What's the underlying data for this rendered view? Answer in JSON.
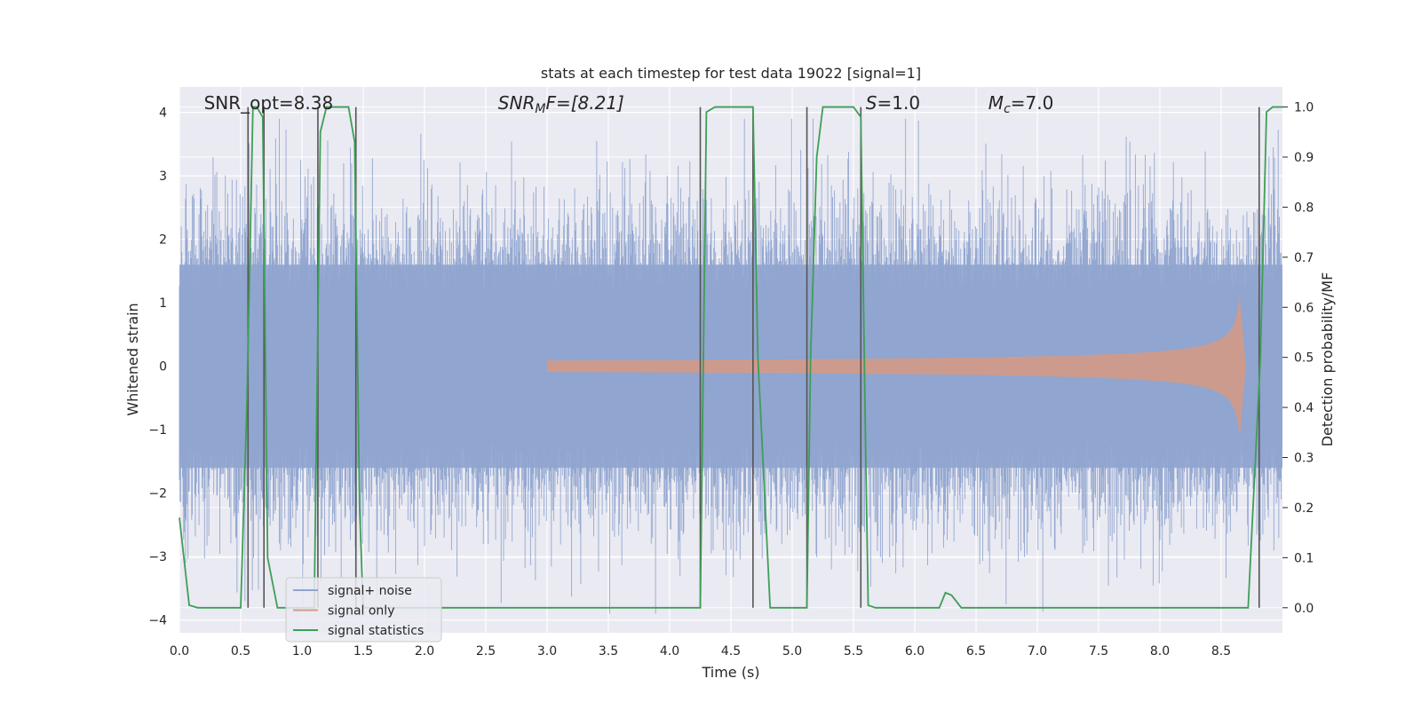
{
  "chart_data": {
    "type": "line",
    "title": "stats at each timestep for test data 19022 [signal=1]",
    "xlabel": "Time (s)",
    "ylabel": "Whitened strain",
    "ylabel_right": "Detection probability/MF",
    "xlim": [
      0.0,
      9.0
    ],
    "ylim": [
      -4.2,
      4.4
    ],
    "ylim_right": [
      -0.05,
      1.04
    ],
    "x_ticks": [
      "0.0",
      "0.5",
      "1.0",
      "1.5",
      "2.0",
      "2.5",
      "3.0",
      "3.5",
      "4.0",
      "4.5",
      "5.0",
      "5.5",
      "6.0",
      "6.5",
      "7.0",
      "7.5",
      "8.0",
      "8.5"
    ],
    "y_ticks": [
      "−4",
      "−3",
      "−2",
      "−1",
      "0",
      "1",
      "2",
      "3",
      "4"
    ],
    "y_ticks_right": [
      "0.0",
      "0.1",
      "0.2",
      "0.3",
      "0.4",
      "0.5",
      "0.6",
      "0.7",
      "0.8",
      "0.9",
      "1.0"
    ],
    "grid": true,
    "legend_position": "lower-left",
    "annotations": [
      {
        "label": "SNR_opt=8.38",
        "x": 0.2
      },
      {
        "label_main": "SNR",
        "label_sub": "M",
        "label_rest": "F=[8.21]",
        "x": 2.6
      },
      {
        "label_main": "S",
        "label_rest": "=1.0",
        "x": 5.6
      },
      {
        "label_main": "M",
        "label_sub": "c",
        "label_rest": "=7.0",
        "x": 6.6
      }
    ],
    "series": [
      {
        "name": "signal+ noise",
        "color": "#8fa4cf",
        "axis": "left",
        "description_range": [
          -3.9,
          3.9
        ],
        "envelope": {
          "core": 1.6,
          "spikes_max": 3.9
        }
      },
      {
        "name": "signal only",
        "color": "#d49a85",
        "axis": "left",
        "chirp": {
          "start_x": 3.0,
          "peak_x": 8.65,
          "peak_amplitude": 1.15,
          "end_x": 8.7
        }
      },
      {
        "name": "signal statistics",
        "color": "#3f9e55",
        "axis": "right",
        "x": [
          0.0,
          0.08,
          0.15,
          0.5,
          0.55,
          0.6,
          0.63,
          0.68,
          0.72,
          0.8,
          1.1,
          1.15,
          1.2,
          1.38,
          1.43,
          1.47,
          1.5,
          4.25,
          4.3,
          4.37,
          4.68,
          4.72,
          4.82,
          5.12,
          5.15,
          5.2,
          5.25,
          5.5,
          5.56,
          5.6,
          5.62,
          5.68,
          6.2,
          6.25,
          6.3,
          6.38,
          8.72,
          8.82,
          8.87,
          8.92,
          9.0
        ],
        "y": [
          0.18,
          0.005,
          0.0,
          0.0,
          0.4,
          1.0,
          1.0,
          0.98,
          0.1,
          0.0,
          0.0,
          0.95,
          1.0,
          1.0,
          0.93,
          0.2,
          0.0,
          0.0,
          0.99,
          1.0,
          1.0,
          0.5,
          0.0,
          0.0,
          0.5,
          0.9,
          1.0,
          1.0,
          0.98,
          0.3,
          0.005,
          0.0,
          0.0,
          0.03,
          0.025,
          0.0,
          0.0,
          0.5,
          0.99,
          1.0,
          1.0
        ]
      }
    ],
    "vertical_markers_x": [
      0.56,
      0.69,
      1.13,
      1.44,
      4.25,
      4.68,
      5.12,
      5.56,
      8.81
    ]
  }
}
